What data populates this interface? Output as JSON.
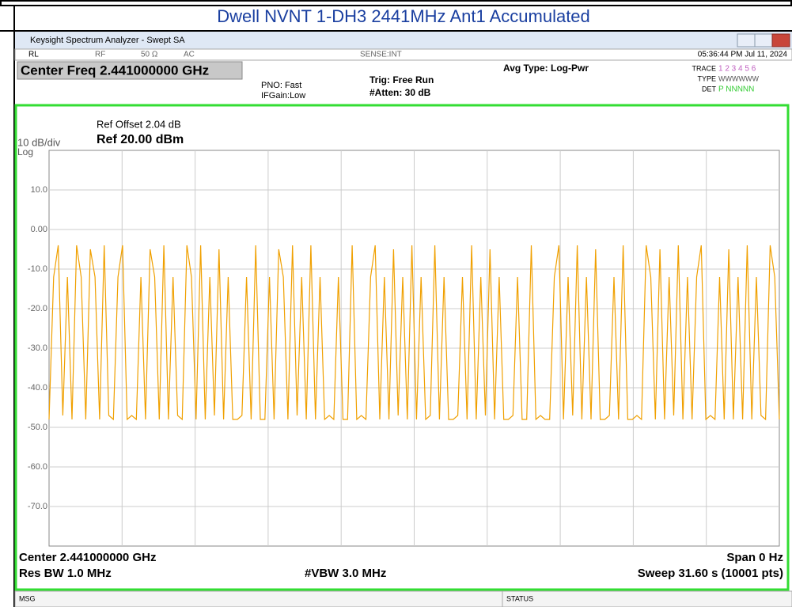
{
  "header": {
    "title": "Dwell NVNT 1-DH3 2441MHz Ant1 Accumulated"
  },
  "window": {
    "title": "Keysight Spectrum Analyzer - Swept SA",
    "rl": "RL",
    "rf": "RF",
    "impedance": "50 Ω",
    "coupling": "AC",
    "sense": "SENSE:INT",
    "timestamp": "05:36:44 PM Jul 11, 2024",
    "center_freq": "Center Freq 2.441000000 GHz",
    "pno": "PNO: Fast",
    "ifgain": "IFGain:Low",
    "trig": "Trig: Free Run",
    "atten": "#Atten: 30 dB",
    "avg_type": "Avg Type: Log-Pwr",
    "trace_label": "TRACE",
    "trace_nums": "1 2 3 4 5 6",
    "type_label": "TYPE",
    "type_vals": "WWWWWW",
    "det_label": "DET",
    "det_vals": "P NNNNN",
    "ref_offset": "Ref Offset 2.04 dB",
    "scale": "10 dB/div",
    "ref_level": "Ref 20.00 dBm",
    "log": "Log",
    "center": "Center 2.441000000 GHz",
    "span": "Span 0 Hz",
    "rbw": "Res BW 1.0 MHz",
    "vbw": "#VBW 3.0 MHz",
    "sweep": "Sweep  31.60 s (10001 pts)",
    "msg": "MSG",
    "status": "STATUS"
  },
  "chart_data": {
    "type": "line",
    "color": "#f0a000",
    "grid": true,
    "ylim": [
      -80,
      20
    ],
    "yticks": [
      {
        "value": 10,
        "label": "10.0"
      },
      {
        "value": 0,
        "label": "0.00"
      },
      {
        "value": -10,
        "label": "-10.0"
      },
      {
        "value": -20,
        "label": "-20.0"
      },
      {
        "value": -30,
        "label": "-30.0"
      },
      {
        "value": -40,
        "label": "-40.0"
      },
      {
        "value": -50,
        "label": "-50.0"
      },
      {
        "value": -60,
        "label": "-60.0"
      },
      {
        "value": -70,
        "label": "-70.0"
      }
    ],
    "values": [
      -48,
      -12,
      -4,
      -47,
      -12,
      -48,
      -4,
      -12,
      -48,
      -5,
      -12,
      -48,
      -4,
      -47,
      -48,
      -12,
      -4,
      -48,
      -47,
      -48,
      -12,
      -48,
      -5,
      -12,
      -48,
      -4,
      -48,
      -12,
      -47,
      -48,
      -4,
      -12,
      -48,
      -4,
      -48,
      -12,
      -47,
      -5,
      -48,
      -12,
      -48,
      -48,
      -47,
      -12,
      -48,
      -4,
      -48,
      -48,
      -12,
      -48,
      -5,
      -12,
      -48,
      -4,
      -47,
      -12,
      -48,
      -4,
      -48,
      -12,
      -48,
      -47,
      -48,
      -12,
      -48,
      -48,
      -4,
      -48,
      -47,
      -48,
      -12,
      -4,
      -48,
      -12,
      -48,
      -5,
      -47,
      -12,
      -48,
      -4,
      -48,
      -12,
      -48,
      -47,
      -4,
      -48,
      -12,
      -48,
      -48,
      -47,
      -12,
      -48,
      -4,
      -48,
      -12,
      -47,
      -5,
      -48,
      -12,
      -48,
      -48,
      -47,
      -12,
      -48,
      -48,
      -4,
      -48,
      -47,
      -48,
      -48,
      -12,
      -4,
      -48,
      -12,
      -47,
      -4,
      -48,
      -12,
      -48,
      -5,
      -48,
      -48,
      -47,
      -12,
      -48,
      -4,
      -48,
      -48,
      -47,
      -48,
      -4,
      -12,
      -48,
      -5,
      -48,
      -12,
      -47,
      -4,
      -48,
      -12,
      -48,
      -12,
      -4,
      -48,
      -47,
      -48,
      -12,
      -48,
      -5,
      -48,
      -12,
      -48,
      -4,
      -48,
      -12,
      -47,
      -48,
      -4,
      -12,
      -48
    ]
  }
}
